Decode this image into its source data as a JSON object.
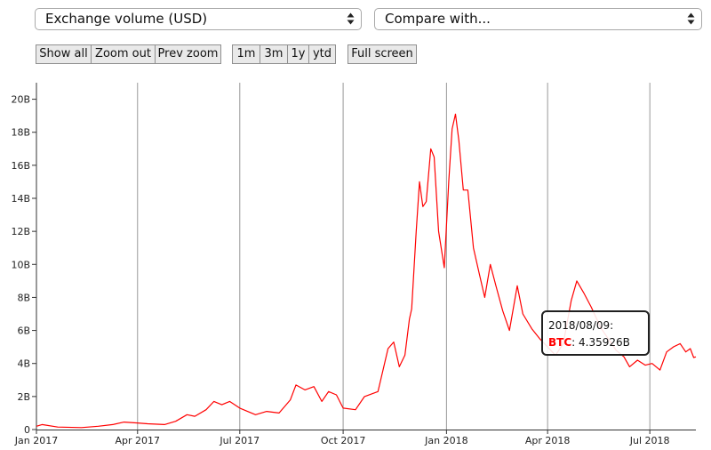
{
  "controls": {
    "metric_select": {
      "value": "Exchange volume (USD)"
    },
    "compare_select": {
      "value": "Compare with..."
    },
    "buttons": {
      "show_all": "Show all",
      "zoom_out": "Zoom out",
      "prev_zoom": "Prev zoom",
      "range_1m": "1m",
      "range_3m": "3m",
      "range_1y": "1y",
      "range_ytd": "ytd",
      "full_screen": "Full screen"
    }
  },
  "tooltip": {
    "date": "2018/08/09:",
    "series_label": "BTC",
    "separator": ":",
    "value": "4.35926B"
  },
  "colors": {
    "series": "#ff0000",
    "grid": "#999999"
  },
  "chart_data": {
    "type": "line",
    "title": "",
    "xlabel": "",
    "ylabel": "",
    "x_ticks": [
      "Jan 2017",
      "Apr 2017",
      "Jul 2017",
      "Oct 2017",
      "Jan 2018",
      "Apr 2018",
      "Jul 2018"
    ],
    "x_tick_dates": [
      "2017-01-01",
      "2017-04-01",
      "2017-07-01",
      "2017-10-01",
      "2018-01-01",
      "2018-04-01",
      "2018-07-01"
    ],
    "y_ticks": [
      "0",
      "2B",
      "4B",
      "6B",
      "8B",
      "10B",
      "12B",
      "14B",
      "16B",
      "18B",
      "20B"
    ],
    "ylim": [
      0,
      21000000000
    ],
    "xlim": [
      "2017-01-01",
      "2018-08-11"
    ],
    "grid": "vertical",
    "series": [
      {
        "name": "BTC",
        "points": [
          [
            "2017-01-01",
            200000000.0
          ],
          [
            "2017-01-06",
            300000000.0
          ],
          [
            "2017-01-20",
            150000000.0
          ],
          [
            "2017-02-10",
            120000000.0
          ],
          [
            "2017-02-25",
            200000000.0
          ],
          [
            "2017-03-10",
            300000000.0
          ],
          [
            "2017-03-20",
            450000000.0
          ],
          [
            "2017-04-01",
            400000000.0
          ],
          [
            "2017-04-10",
            350000000.0
          ],
          [
            "2017-04-25",
            300000000.0
          ],
          [
            "2017-05-05",
            500000000.0
          ],
          [
            "2017-05-15",
            900000000.0
          ],
          [
            "2017-05-22",
            800000000.0
          ],
          [
            "2017-06-01",
            1200000000.0
          ],
          [
            "2017-06-08",
            1700000000.0
          ],
          [
            "2017-06-15",
            1500000000.0
          ],
          [
            "2017-06-22",
            1700000000.0
          ],
          [
            "2017-07-01",
            1300000000.0
          ],
          [
            "2017-07-15",
            900000000.0
          ],
          [
            "2017-07-25",
            1100000000.0
          ],
          [
            "2017-08-05",
            1000000000.0
          ],
          [
            "2017-08-15",
            1800000000.0
          ],
          [
            "2017-08-20",
            2700000000.0
          ],
          [
            "2017-08-28",
            2400000000.0
          ],
          [
            "2017-09-05",
            2600000000.0
          ],
          [
            "2017-09-12",
            1700000000.0
          ],
          [
            "2017-09-18",
            2300000000.0
          ],
          [
            "2017-09-25",
            2100000000.0
          ],
          [
            "2017-10-01",
            1300000000.0
          ],
          [
            "2017-10-12",
            1200000000.0
          ],
          [
            "2017-10-20",
            2000000000.0
          ],
          [
            "2017-11-01",
            2300000000.0
          ],
          [
            "2017-11-10",
            4900000000.0
          ],
          [
            "2017-11-15",
            5300000000.0
          ],
          [
            "2017-11-20",
            3800000000.0
          ],
          [
            "2017-11-25",
            4500000000.0
          ],
          [
            "2017-11-29",
            6700000000.0
          ],
          [
            "2017-12-01",
            7300000000.0
          ],
          [
            "2017-12-05",
            12000000000.0
          ],
          [
            "2017-12-08",
            15000000000.0
          ],
          [
            "2017-12-11",
            13500000000.0
          ],
          [
            "2017-12-14",
            13800000000.0
          ],
          [
            "2017-12-18",
            17000000000.0
          ],
          [
            "2017-12-21",
            16500000000.0
          ],
          [
            "2017-12-25",
            12000000000.0
          ],
          [
            "2017-12-30",
            9800000000.0
          ],
          [
            "2018-01-03",
            15000000000.0
          ],
          [
            "2018-01-06",
            18200000000.0
          ],
          [
            "2018-01-09",
            19100000000.0
          ],
          [
            "2018-01-12",
            17500000000.0
          ],
          [
            "2018-01-16",
            14500000000.0
          ],
          [
            "2018-01-20",
            14500000000.0
          ],
          [
            "2018-01-25",
            11000000000.0
          ],
          [
            "2018-01-30",
            9500000000.0
          ],
          [
            "2018-02-04",
            8000000000.0
          ],
          [
            "2018-02-09",
            10000000000.0
          ],
          [
            "2018-02-14",
            8700000000.0
          ],
          [
            "2018-02-20",
            7200000000.0
          ],
          [
            "2018-02-26",
            6000000000.0
          ],
          [
            "2018-03-05",
            8700000000.0
          ],
          [
            "2018-03-10",
            7000000000.0
          ],
          [
            "2018-03-18",
            6100000000.0
          ],
          [
            "2018-03-25",
            5500000000.0
          ],
          [
            "2018-04-01",
            5000000000.0
          ],
          [
            "2018-04-08",
            4500000000.0
          ],
          [
            "2018-04-15",
            5200000000.0
          ],
          [
            "2018-04-22",
            7800000000.0
          ],
          [
            "2018-04-27",
            9000000000.0
          ],
          [
            "2018-05-03",
            8300000000.0
          ],
          [
            "2018-05-10",
            7400000000.0
          ],
          [
            "2018-05-18",
            6200000000.0
          ],
          [
            "2018-05-25",
            5500000000.0
          ],
          [
            "2018-06-01",
            4800000000.0
          ],
          [
            "2018-06-08",
            4400000000.0
          ],
          [
            "2018-06-13",
            3800000000.0
          ],
          [
            "2018-06-20",
            4200000000.0
          ],
          [
            "2018-06-27",
            3900000000.0
          ],
          [
            "2018-07-03",
            4000000000.0
          ],
          [
            "2018-07-10",
            3600000000.0
          ],
          [
            "2018-07-16",
            4700000000.0
          ],
          [
            "2018-07-22",
            5000000000.0
          ],
          [
            "2018-07-28",
            5200000000.0
          ],
          [
            "2018-08-02",
            4700000000.0
          ],
          [
            "2018-08-06",
            4900000000.0
          ],
          [
            "2018-08-09",
            4359260000.0
          ],
          [
            "2018-08-11",
            4400000000.0
          ]
        ]
      }
    ]
  }
}
